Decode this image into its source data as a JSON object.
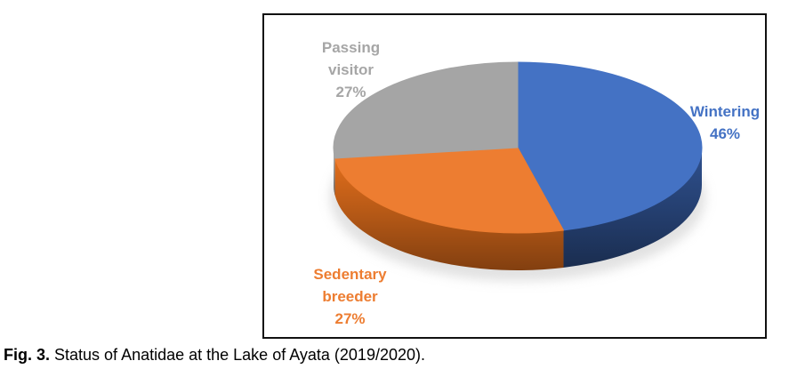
{
  "figure": {
    "caption_prefix": "Fig. 3.",
    "caption_text": " Status of Anatidae at the Lake of Ayata (2019/2020)."
  },
  "chart_data": {
    "type": "pie",
    "style": "3d",
    "title": "",
    "categories": [
      "Wintering",
      "Sedentary breeder",
      "Passing visitor"
    ],
    "values": [
      46,
      27,
      27
    ],
    "unit": "%",
    "colors": [
      "#4472C4",
      "#ED7D31",
      "#A5A5A5"
    ],
    "side_colors": [
      "#243E6E",
      "#B45816",
      "#8C8C8C"
    ],
    "start_angle_deg": 0,
    "direction": "clockwise",
    "legend": "none",
    "labels": [
      {
        "lines": [
          "Wintering",
          "46%"
        ],
        "color": "#4472C4"
      },
      {
        "lines": [
          "Sedentary",
          "breeder",
          "27%"
        ],
        "color": "#ED7D31"
      },
      {
        "lines": [
          "Passing",
          "visitor",
          "27%"
        ],
        "color": "#A6A6A6"
      }
    ]
  }
}
